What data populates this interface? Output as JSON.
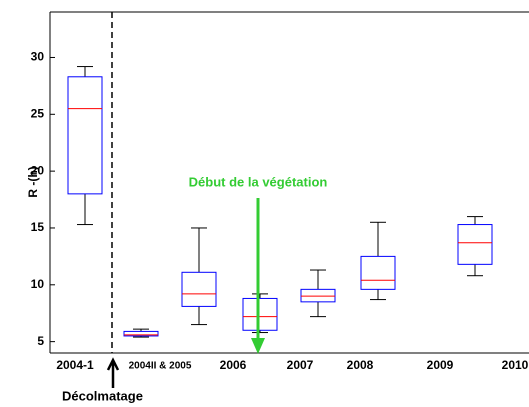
{
  "chart_data": {
    "type": "box",
    "ylabel": "R -(h)",
    "categories": [
      "2004-1",
      "2004II & 2005",
      "2006",
      "2007",
      "2008",
      "2009",
      "2010"
    ],
    "boxes": [
      {
        "min": 15.3,
        "q1": 18,
        "median": 25.5,
        "q3": 28.3,
        "max": 29.2
      },
      {
        "min": 5.4,
        "q1": 5.5,
        "median": 5.6,
        "q3": 5.9,
        "max": 6.1
      },
      {
        "min": 6.5,
        "q1": 8.1,
        "median": 9.2,
        "q3": 11.1,
        "max": 15
      },
      {
        "min": 5.8,
        "q1": 6,
        "median": 7.2,
        "q3": 8.8,
        "max": 9.2
      },
      {
        "min": 7.2,
        "q1": 8.5,
        "median": 9,
        "q3": 9.6,
        "max": 11.3
      },
      {
        "min": 8.7,
        "q1": 9.6,
        "median": 10.4,
        "q3": 12.5,
        "max": 15.5
      },
      {
        "min": 10.8,
        "q1": 11.8,
        "median": 13.7,
        "q3": 15.3,
        "max": 16
      }
    ],
    "box_color": "#0000ff",
    "median_color": "#ff0000",
    "ylim": [
      4,
      34
    ],
    "yticks": [
      5,
      10,
      15,
      20,
      25,
      30
    ],
    "annotations": [
      "Début de la végétation",
      "Décolmatage"
    ],
    "annotation_color": "#33cc33"
  }
}
